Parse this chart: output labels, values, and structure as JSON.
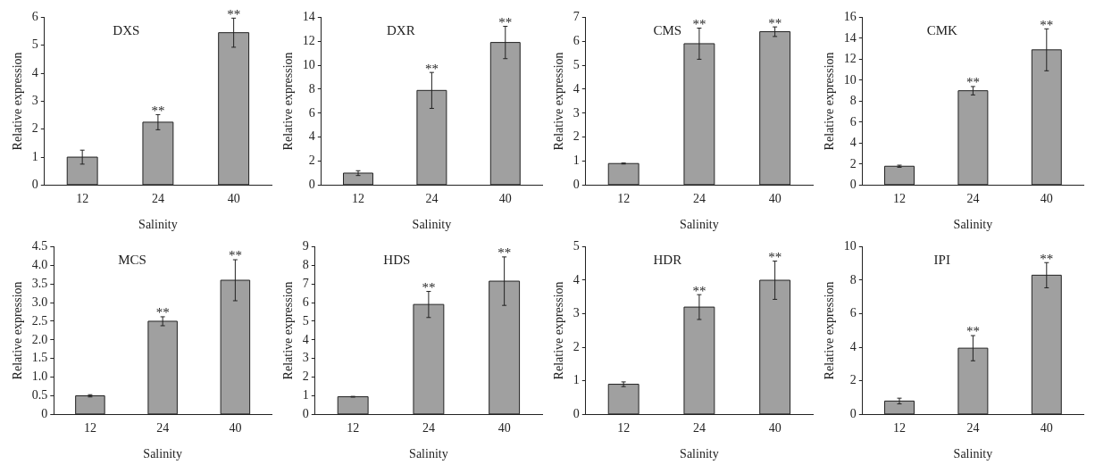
{
  "chart_data": [
    {
      "type": "bar",
      "title": "DXS",
      "xlabel": "Salinity",
      "ylabel": "Relative expression",
      "categories": [
        "12",
        "24",
        "40"
      ],
      "values": [
        1.0,
        2.25,
        5.45
      ],
      "errors": [
        0.25,
        0.27,
        0.52
      ],
      "color": "#a0a0a0",
      "ylim": [
        0,
        6
      ],
      "yticks": [
        0,
        1,
        2,
        3,
        4,
        5,
        6
      ],
      "grid": false,
      "annotations": [
        {
          "text": "**",
          "x": "24",
          "y": 2.52
        },
        {
          "text": "**",
          "x": "40",
          "y": 5.97
        }
      ]
    },
    {
      "type": "bar",
      "title": "DXR",
      "xlabel": "Salinity",
      "ylabel": "Relative expression",
      "categories": [
        "12",
        "24",
        "40"
      ],
      "values": [
        1.0,
        7.9,
        11.9
      ],
      "errors": [
        0.2,
        1.5,
        1.35
      ],
      "color": "#a0a0a0",
      "ylim": [
        0,
        14
      ],
      "yticks": [
        0,
        2,
        4,
        6,
        8,
        10,
        12,
        14
      ],
      "grid": false,
      "annotations": [
        {
          "text": "**",
          "x": "24",
          "y": 9.4
        },
        {
          "text": "**",
          "x": "40",
          "y": 13.25
        }
      ]
    },
    {
      "type": "bar",
      "title": "CMS",
      "xlabel": "Salinity",
      "ylabel": "Relative expression",
      "categories": [
        "12",
        "24",
        "40"
      ],
      "values": [
        0.9,
        5.9,
        6.4
      ],
      "errors": [
        0.02,
        0.65,
        0.2
      ],
      "color": "#a0a0a0",
      "ylim": [
        0,
        7
      ],
      "yticks": [
        0,
        1,
        2,
        3,
        4,
        5,
        6,
        7
      ],
      "grid": false,
      "annotations": [
        {
          "text": "**",
          "x": "24",
          "y": 6.55
        },
        {
          "text": "**",
          "x": "40",
          "y": 6.6
        }
      ]
    },
    {
      "type": "bar",
      "title": "CMK",
      "xlabel": "Salinity",
      "ylabel": "Relative expression",
      "categories": [
        "12",
        "24",
        "40"
      ],
      "values": [
        1.8,
        9.0,
        12.9
      ],
      "errors": [
        0.1,
        0.4,
        2.0
      ],
      "color": "#a0a0a0",
      "ylim": [
        0,
        16
      ],
      "yticks": [
        0,
        2,
        4,
        6,
        8,
        10,
        12,
        14,
        16
      ],
      "grid": false,
      "annotations": [
        {
          "text": "**",
          "x": "24",
          "y": 9.4
        },
        {
          "text": "**",
          "x": "40",
          "y": 14.9
        }
      ]
    },
    {
      "type": "bar",
      "title": "MCS",
      "xlabel": "Salinity",
      "ylabel": "Relative expression",
      "categories": [
        "12",
        "24",
        "40"
      ],
      "values": [
        0.5,
        2.5,
        3.6
      ],
      "errors": [
        0.03,
        0.12,
        0.55
      ],
      "color": "#a0a0a0",
      "ylim": [
        0,
        4.5
      ],
      "yticks": [
        0,
        0.5,
        {
          "value": 1,
          "label": "1.0"
        },
        1.5,
        {
          "value": 2,
          "label": "2.0"
        },
        2.5,
        {
          "value": 3,
          "label": "3.0"
        },
        3.5,
        {
          "value": 4,
          "label": "4.0"
        },
        4.5
      ],
      "grid": false,
      "annotations": [
        {
          "text": "**",
          "x": "24",
          "y": 2.62
        },
        {
          "text": "**",
          "x": "40",
          "y": 4.15
        }
      ]
    },
    {
      "type": "bar",
      "title": "HDS",
      "xlabel": "Salinity",
      "ylabel": "Relative expression",
      "categories": [
        "12",
        "24",
        "40"
      ],
      "values": [
        0.95,
        5.9,
        7.15
      ],
      "errors": [
        0.02,
        0.7,
        1.3
      ],
      "color": "#a0a0a0",
      "ylim": [
        0,
        9
      ],
      "yticks": [
        0,
        1,
        2,
        3,
        4,
        5,
        6,
        7,
        8,
        9
      ],
      "grid": false,
      "annotations": [
        {
          "text": "**",
          "x": "24",
          "y": 6.6
        },
        {
          "text": "**",
          "x": "40",
          "y": 8.45
        }
      ]
    },
    {
      "type": "bar",
      "title": "HDR",
      "xlabel": "Salinity",
      "ylabel": "Relative expression",
      "categories": [
        "12",
        "24",
        "40"
      ],
      "values": [
        0.9,
        3.2,
        4.0
      ],
      "errors": [
        0.07,
        0.37,
        0.57
      ],
      "color": "#a0a0a0",
      "ylim": [
        0,
        5
      ],
      "yticks": [
        0,
        1,
        2,
        3,
        4,
        5
      ],
      "grid": false,
      "annotations": [
        {
          "text": "**",
          "x": "24",
          "y": 3.57
        },
        {
          "text": "**",
          "x": "40",
          "y": 4.57
        }
      ]
    },
    {
      "type": "bar",
      "title": "IPI",
      "xlabel": "Salinity",
      "ylabel": "Relative expression",
      "categories": [
        "12",
        "24",
        "40"
      ],
      "values": [
        0.8,
        3.95,
        8.3
      ],
      "errors": [
        0.17,
        0.75,
        0.75
      ],
      "color": "#a0a0a0",
      "ylim": [
        0,
        10
      ],
      "yticks": [
        0,
        2,
        4,
        6,
        8,
        10
      ],
      "grid": false,
      "annotations": [
        {
          "text": "**",
          "x": "24",
          "y": 4.7
        },
        {
          "text": "**",
          "x": "40",
          "y": 9.05
        }
      ]
    }
  ]
}
